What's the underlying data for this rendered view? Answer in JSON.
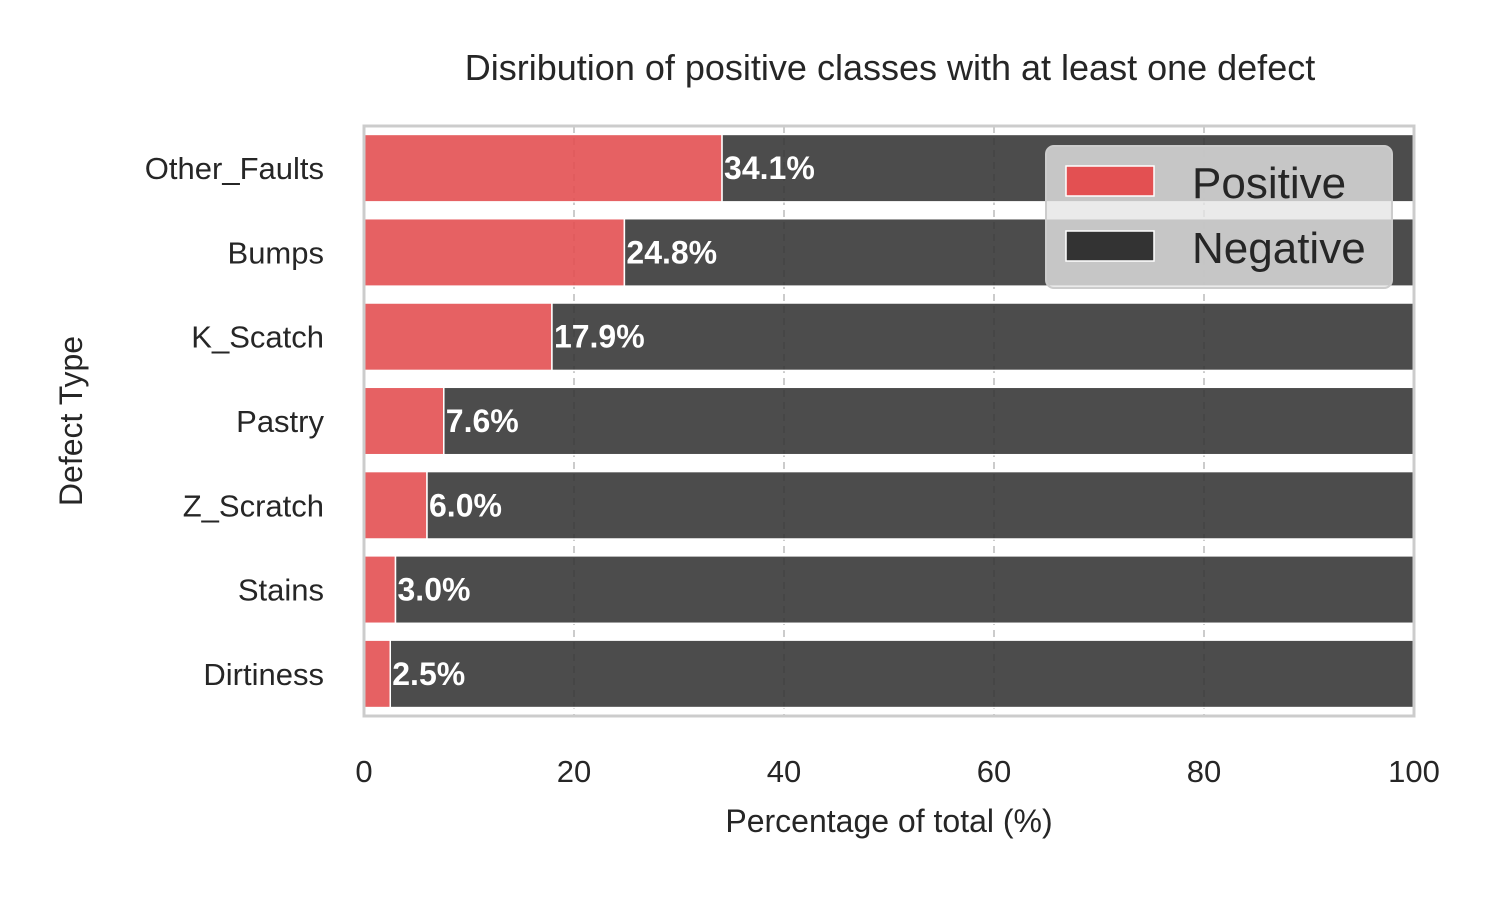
{
  "chart_data": {
    "type": "bar",
    "orientation": "horizontal",
    "stacked": true,
    "title": "Disribution of positive classes with at least one defect",
    "xlabel": "Percentage of total (%)",
    "ylabel": "Defect Type",
    "xlim": [
      0,
      100
    ],
    "xticks": [
      0,
      20,
      40,
      60,
      80,
      100
    ],
    "grid": true,
    "legend_position": "top-right",
    "categories": [
      "Other_Faults",
      "Bumps",
      "K_Scatch",
      "Pastry",
      "Z_Scratch",
      "Stains",
      "Dirtiness"
    ],
    "series": [
      {
        "name": "Positive",
        "color": "#e35052",
        "values": [
          34.1,
          24.8,
          17.9,
          7.6,
          6.0,
          3.0,
          2.5
        ]
      },
      {
        "name": "Negative",
        "color": "#333333",
        "values": [
          65.9,
          75.2,
          82.1,
          92.4,
          94.0,
          97.0,
          97.5
        ]
      }
    ],
    "data_labels": [
      "34.1%",
      "24.8%",
      "17.9%",
      "7.6%",
      "6.0%",
      "3.0%",
      "2.5%"
    ]
  }
}
